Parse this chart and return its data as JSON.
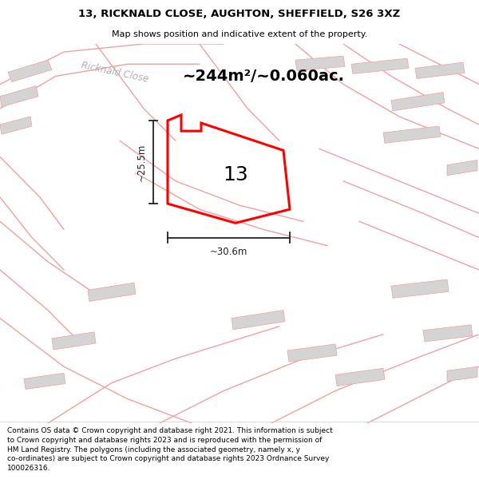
{
  "title_line1": "13, RICKNALD CLOSE, AUGHTON, SHEFFIELD, S26 3XZ",
  "title_line2": "Map shows position and indicative extent of the property.",
  "footer_text": "Contains OS data © Crown copyright and database right 2021. This information is subject to Crown copyright and database rights 2023 and is reproduced with the permission of HM Land Registry. The polygons (including the associated geometry, namely x, y co-ordinates) are subject to Crown copyright and database rights 2023 Ordnance Survey 100026316.",
  "area_label": "~244m²/~0.060ac.",
  "width_label": "~30.6m",
  "height_label": "~25.5m",
  "plot_number": "13",
  "bg_color": "#ffffff",
  "map_bg": "#f5f5f5",
  "building_fill": "#d4d4d4",
  "road_line_color": "#f0a0a0",
  "plot_color": "#ff0000",
  "dim_color": "#222222",
  "title_color": "#000000",
  "footer_color": "#000000",
  "street_label": "Ricknald Close",
  "street_label_color": "#b0b0b0"
}
